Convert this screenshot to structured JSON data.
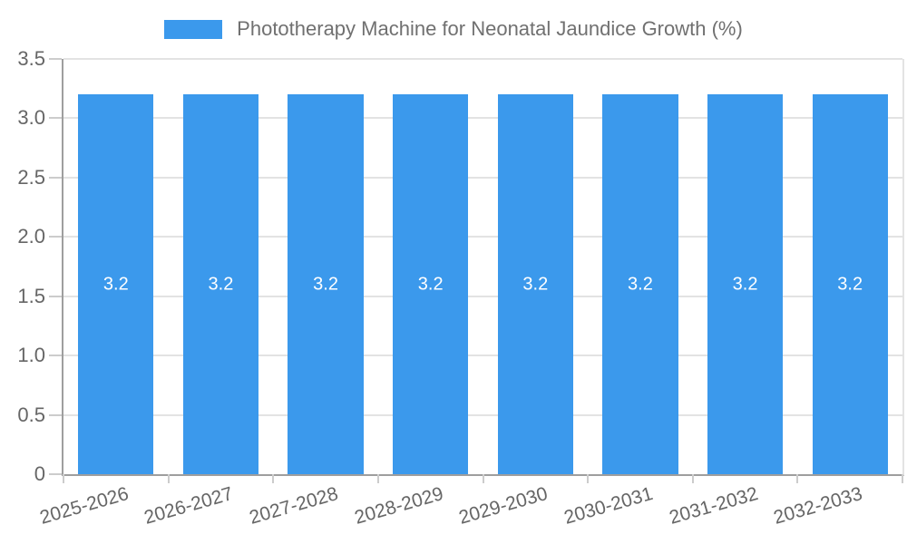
{
  "legend": {
    "swatch_color": "#3b99ec"
  },
  "chart_data": {
    "type": "bar",
    "title": "Phototherapy Machine for Neonatal Jaundice Growth (%)",
    "categories": [
      "2025-2026",
      "2026-2027",
      "2027-2028",
      "2028-2029",
      "2029-2030",
      "2030-2031",
      "2031-2032",
      "2032-2033"
    ],
    "values": [
      3.2,
      3.2,
      3.2,
      3.2,
      3.2,
      3.2,
      3.2,
      3.2
    ],
    "bar_value_labels": [
      "3.2",
      "3.2",
      "3.2",
      "3.2",
      "3.2",
      "3.2",
      "3.2",
      "3.2"
    ],
    "xlabel": "",
    "ylabel": "",
    "ylim": [
      0,
      3.5
    ],
    "y_tick_step": 0.5,
    "y_tick_labels": [
      "0",
      "0.5",
      "1.0",
      "1.5",
      "2.0",
      "2.5",
      "3.0",
      "3.5"
    ],
    "grid": true,
    "legend_position": "top",
    "x_label_rotation_deg": -16,
    "colors": {
      "bar": "#3b99ec",
      "bar_label_text": "#ffffff",
      "axis_line": "#9e9e9e",
      "grid_line": "#e3e3e3",
      "tick_mark": "#cccccc",
      "tick_text": "#666666",
      "title_text": "#707070",
      "background": "#ffffff"
    }
  }
}
